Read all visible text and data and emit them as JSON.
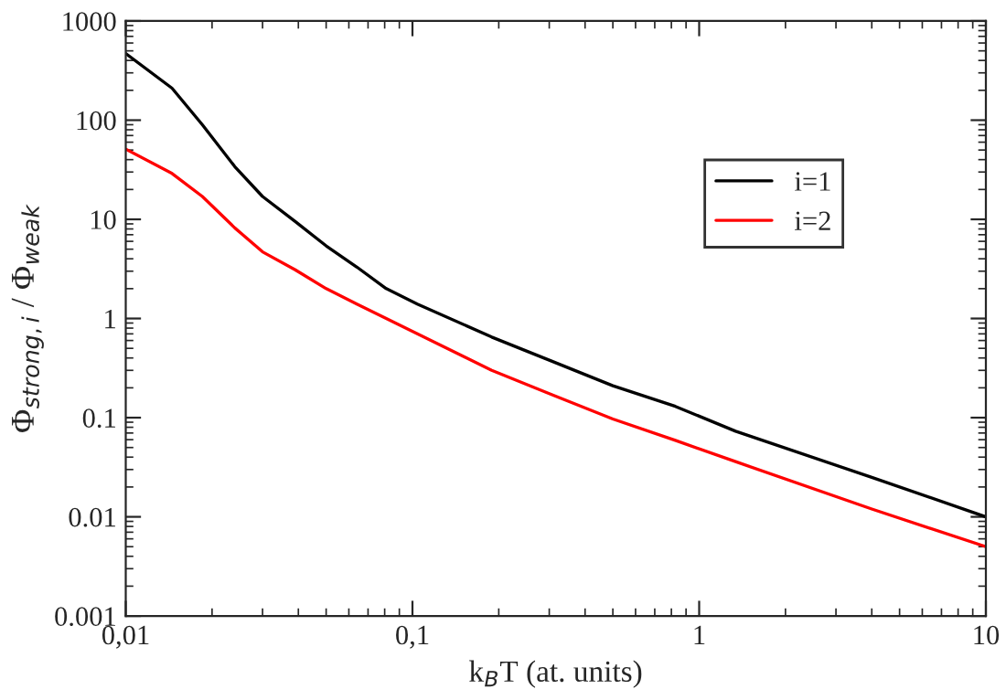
{
  "chart_data": {
    "type": "line",
    "xlabel": "k$_{B}$T (at. units)",
    "ylabel": "Φ$_{strong,i}$ / Φ$_{weak}$",
    "log": "xy",
    "grid": false,
    "legend": "top right",
    "marker": "none",
    "line_style": "solid",
    "xlim": [
      0.01,
      10
    ],
    "ylim": [
      0.001,
      1000
    ],
    "xticks": [
      {
        "value": 0.01,
        "label": "0,01"
      },
      {
        "value": 0.1,
        "label": "0,1"
      },
      1,
      10
    ],
    "yticks": [
      {
        "value": 0.001,
        "label": "0.001"
      },
      {
        "value": 0.01,
        "label": "0.01"
      },
      {
        "value": 0.1,
        "label": "0.1"
      },
      1,
      10,
      100,
      1000
    ],
    "x": [
      0.01,
      0.0145,
      0.0185,
      0.024,
      0.03,
      0.039,
      0.05,
      0.064,
      0.081,
      0.104,
      0.189,
      0.307,
      0.5,
      0.826,
      1.34,
      4,
      10
    ],
    "series": [
      {
        "name": "i=1",
        "color": "#000000",
        "values": [
          470,
          210,
          90,
          34,
          17,
          9.5,
          5.4,
          3.3,
          2.0,
          1.4,
          0.65,
          0.37,
          0.21,
          0.13,
          0.073,
          0.025,
          0.01
        ]
      },
      {
        "name": "i=2",
        "color": "#ff0000",
        "values": [
          51,
          29,
          17,
          8.2,
          4.7,
          3.1,
          2.0,
          1.4,
          1.0,
          0.7,
          0.3,
          0.17,
          0.097,
          0.059,
          0.036,
          0.012,
          0.005
        ]
      }
    ]
  }
}
